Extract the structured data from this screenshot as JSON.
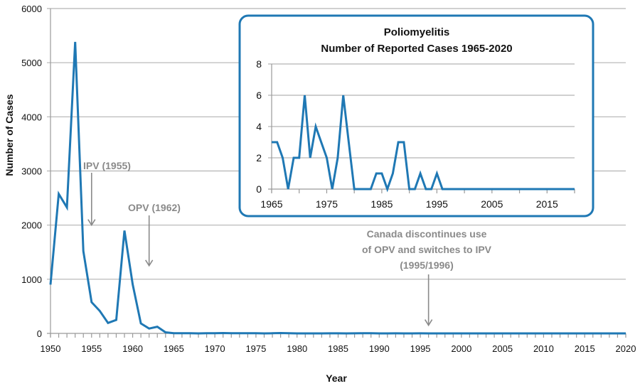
{
  "chart_data": [
    {
      "type": "line",
      "title": "",
      "xlabel": "Year",
      "ylabel": "Number of Cases",
      "xlim": [
        1950,
        2020
      ],
      "ylim": [
        0,
        6000
      ],
      "grid": true,
      "x_ticks": [
        1950,
        1955,
        1960,
        1965,
        1970,
        1975,
        1980,
        1985,
        1990,
        1995,
        2000,
        2005,
        2010,
        2015,
        2020
      ],
      "x_tick_labels": [
        "1950",
        "1955",
        "1960",
        "1965",
        "1970",
        "1975",
        "1980",
        "1985",
        "1990",
        "1995",
        "2000",
        "2005",
        "2010",
        "2015",
        "2020"
      ],
      "y_ticks": [
        0,
        1000,
        2000,
        3000,
        4000,
        5000,
        6000
      ],
      "y_tick_labels": [
        "0",
        "1000",
        "2000",
        "3000",
        "4000",
        "5000",
        "6000"
      ],
      "series": [
        {
          "name": "Reported cases",
          "color": "#1f78b4",
          "x": [
            1950,
            1951,
            1952,
            1953,
            1954,
            1955,
            1956,
            1957,
            1958,
            1959,
            1960,
            1961,
            1962,
            1963,
            1964,
            1965,
            1966,
            1967,
            1968,
            1969,
            1970,
            1971,
            1972,
            1973,
            1974,
            1975,
            1976,
            1977,
            1978,
            1979,
            1980,
            1981,
            1982,
            1983,
            1984,
            1985,
            1986,
            1987,
            1988,
            1989,
            1990,
            1991,
            1992,
            1993,
            1994,
            1995,
            1996,
            1997,
            1998,
            1999,
            2000,
            2001,
            2002,
            2003,
            2004,
            2005,
            2006,
            2007,
            2008,
            2009,
            2010,
            2011,
            2012,
            2013,
            2014,
            2015,
            2016,
            2017,
            2018,
            2019,
            2020
          ],
          "values": [
            900,
            2576,
            2327,
            5384,
            1520,
            577,
            415,
            193,
            250,
            1899,
            905,
            184,
            89,
            124,
            20,
            3,
            3,
            2,
            0,
            2,
            2,
            6,
            2,
            4,
            3,
            2,
            0,
            2,
            6,
            3,
            0,
            0,
            0,
            0,
            1,
            1,
            0,
            1,
            3,
            3,
            0,
            0,
            1,
            0,
            0,
            1,
            0,
            0,
            0,
            0,
            0,
            0,
            0,
            0,
            0,
            0,
            0,
            0,
            0,
            0,
            0,
            0,
            0,
            0,
            0,
            0,
            0,
            0,
            0,
            0,
            0
          ]
        }
      ],
      "annotations": [
        {
          "text": "IPV (1955)",
          "arrow_x": 1955,
          "arrow_to_value": 2000
        },
        {
          "text": "OPV (1962)",
          "arrow_x": 1962,
          "arrow_to_value": 1250
        },
        {
          "lines": [
            "Canada discontinues use",
            "of OPV and switches to IPV",
            "(1995/1996)"
          ],
          "arrow_x": 1996,
          "arrow_to_value": 150
        }
      ]
    },
    {
      "type": "line",
      "title_lines": [
        "Poliomyelitis",
        "Number of Reported Cases 1965-2020"
      ],
      "xlim": [
        1965,
        2020
      ],
      "ylim": [
        0,
        8
      ],
      "grid": true,
      "legend": "none",
      "x_ticks": [
        1965,
        1970,
        1975,
        1980,
        1985,
        1990,
        1995,
        2000,
        2005,
        2010,
        2015,
        2020
      ],
      "x_tick_labels": [
        "1965",
        "",
        "1975",
        "",
        "1985",
        "",
        "1995",
        "",
        "2005",
        "",
        "2015",
        ""
      ],
      "y_ticks": [
        0,
        2,
        4,
        6,
        8
      ],
      "y_tick_labels": [
        "0",
        "2",
        "4",
        "6",
        "8"
      ],
      "series": [
        {
          "name": "Reported cases 1965-2020",
          "color": "#1f78b4",
          "x": [
            1965,
            1966,
            1967,
            1968,
            1969,
            1970,
            1971,
            1972,
            1973,
            1974,
            1975,
            1976,
            1977,
            1978,
            1979,
            1980,
            1981,
            1982,
            1983,
            1984,
            1985,
            1986,
            1987,
            1988,
            1989,
            1990,
            1991,
            1992,
            1993,
            1994,
            1995,
            1996,
            1997,
            1998,
            1999,
            2000,
            2001,
            2002,
            2003,
            2004,
            2005,
            2006,
            2007,
            2008,
            2009,
            2010,
            2011,
            2012,
            2013,
            2014,
            2015,
            2016,
            2017,
            2018,
            2019,
            2020
          ],
          "values": [
            3,
            3,
            2,
            0,
            2,
            2,
            6,
            2,
            4,
            3,
            2,
            0,
            2,
            6,
            3,
            0,
            0,
            0,
            0,
            1,
            1,
            0,
            1,
            3,
            3,
            0,
            0,
            1,
            0,
            0,
            1,
            0,
            0,
            0,
            0,
            0,
            0,
            0,
            0,
            0,
            0,
            0,
            0,
            0,
            0,
            0,
            0,
            0,
            0,
            0,
            0,
            0,
            0,
            0,
            0,
            0
          ]
        }
      ],
      "border_color": "#1f78b4"
    }
  ]
}
